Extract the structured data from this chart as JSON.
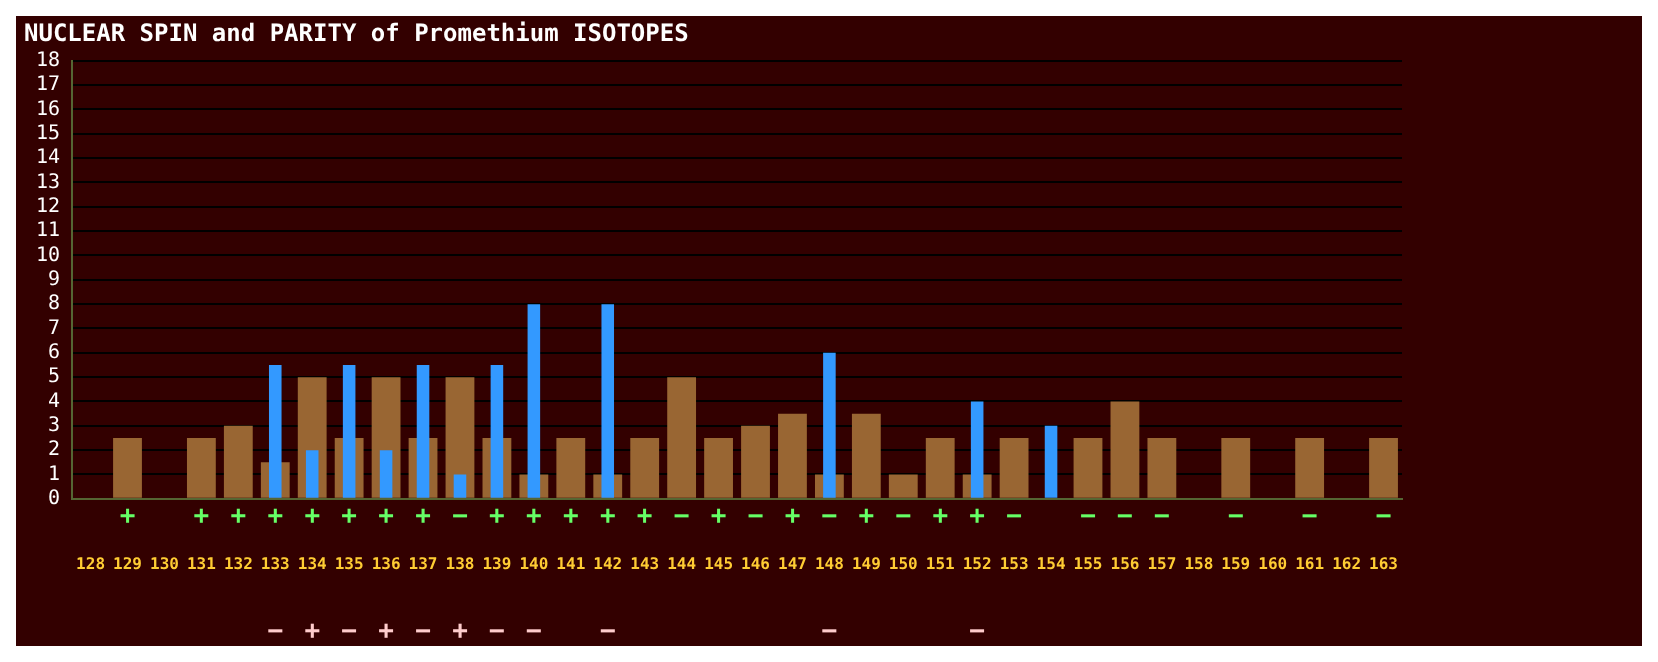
{
  "chart_data": {
    "type": "bar",
    "title": "NUCLEAR SPIN and PARITY of Promethium ISOTOPES",
    "categories": [
      "128",
      "129",
      "130",
      "131",
      "132",
      "133",
      "134",
      "135",
      "136",
      "137",
      "138",
      "139",
      "140",
      "141",
      "142",
      "143",
      "144",
      "145",
      "146",
      "147",
      "148",
      "149",
      "150",
      "151",
      "152",
      "153",
      "154",
      "155",
      "156",
      "157",
      "158",
      "159",
      "160",
      "161",
      "162",
      "163"
    ],
    "series": [
      {
        "color": "#996633",
        "values": [
          null,
          2.5,
          null,
          2.5,
          3,
          1.5,
          5,
          2.5,
          5,
          2.5,
          5,
          2.5,
          1,
          2.5,
          1,
          2.5,
          5,
          2.5,
          3,
          3.5,
          1,
          3.5,
          1,
          2.5,
          1,
          2.5,
          0,
          2.5,
          4,
          2.5,
          null,
          2.5,
          null,
          2.5,
          null,
          2.5
        ],
        "value_labels": [
          null,
          "+",
          null,
          "+",
          "+",
          "+",
          "+",
          "+",
          "+",
          "+",
          "−",
          "+",
          "+",
          "+",
          "+",
          "+",
          "−",
          "+",
          "−",
          "+",
          "−",
          "+",
          "−",
          "+",
          "+",
          "−",
          null,
          "−",
          "−",
          "−",
          null,
          "−",
          null,
          "−",
          null,
          "−"
        ]
      },
      {
        "color": "#3399ff",
        "values": [
          null,
          null,
          null,
          null,
          null,
          5.5,
          2,
          5.5,
          2,
          5.5,
          1,
          5.5,
          8,
          null,
          8,
          null,
          null,
          null,
          null,
          null,
          6,
          null,
          null,
          null,
          4,
          null,
          3,
          null,
          null,
          null,
          null,
          null,
          null,
          null,
          null,
          null
        ],
        "value_labels": [
          null,
          null,
          null,
          null,
          null,
          "−",
          "+",
          "−",
          "+",
          "−",
          "+",
          "−",
          "−",
          null,
          "−",
          null,
          null,
          null,
          null,
          null,
          "−",
          null,
          null,
          null,
          "−",
          null,
          null,
          null,
          null,
          null,
          null,
          null,
          null,
          null,
          null,
          null
        ]
      }
    ],
    "ylim": [
      0,
      18
    ],
    "yticks": [
      0,
      1,
      2,
      3,
      4,
      5,
      6,
      7,
      8,
      9,
      10,
      11,
      12,
      13,
      14,
      15,
      16,
      17,
      18
    ],
    "grid": "y",
    "legend": false
  }
}
